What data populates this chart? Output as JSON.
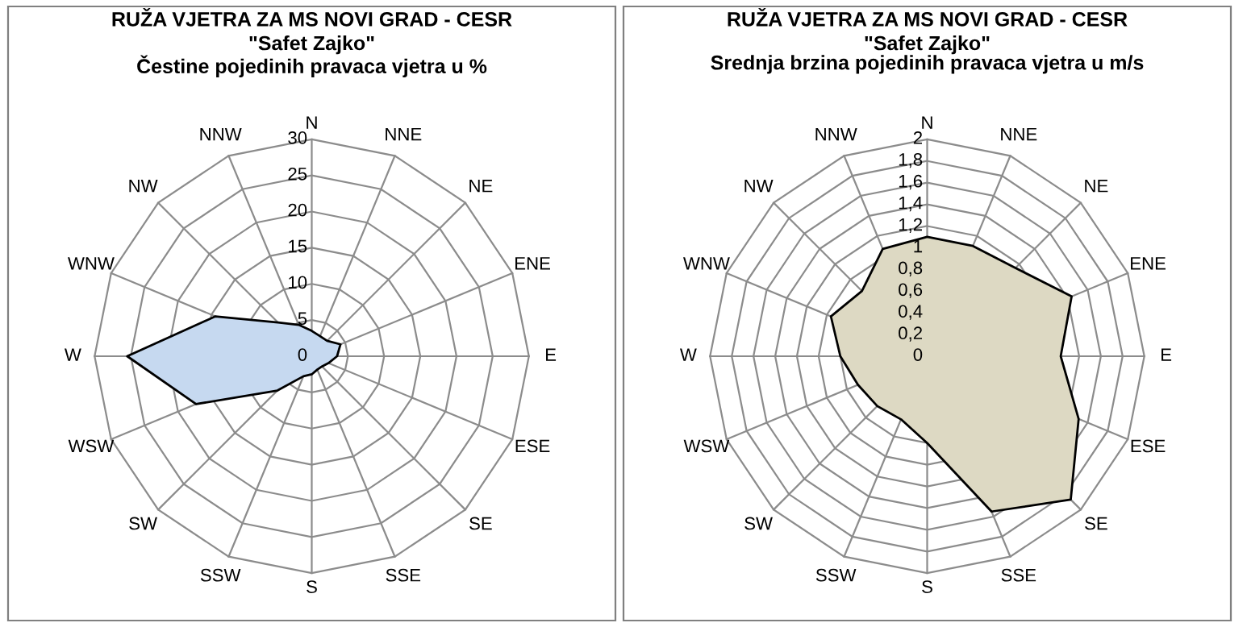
{
  "chart_data": [
    {
      "type": "radar",
      "title": "RUŽA VJETRA ZA MS NOVI GRAD - CESR",
      "subtitle": "\"Safet Zajko\"\nČestine pojedinih pravaca vjetra u %",
      "categories": [
        "N",
        "NNE",
        "NE",
        "ENE",
        "E",
        "ESE",
        "SE",
        "SSE",
        "S",
        "SSW",
        "SW",
        "WSW",
        "W",
        "WNW",
        "NW",
        "NNW"
      ],
      "ylim": [
        0,
        30
      ],
      "yticks": [
        0,
        5,
        10,
        15,
        20,
        25,
        30
      ],
      "grid": true,
      "series": [
        {
          "color": "#c6d9f0",
          "values": [
            3.5,
            3,
            3,
            4.3,
            3.5,
            2.5,
            2,
            2,
            2.5,
            3,
            6.7,
            17.3,
            25.5,
            14.4,
            6.6,
            4.7
          ]
        }
      ]
    },
    {
      "type": "radar",
      "title": "RUŽA VJETRA ZA MS NOVI GRAD - CESR",
      "subtitle": "\"Safet Zajko\"\nSrednja brzina pojedinih pravaca vjetra u m/s",
      "categories": [
        "N",
        "NNE",
        "NE",
        "ENE",
        "E",
        "ESE",
        "SE",
        "SSE",
        "S",
        "SSW",
        "SW",
        "WSW",
        "W",
        "WNW",
        "NW",
        "NNW"
      ],
      "ylim": [
        0,
        2
      ],
      "yticks": [
        0,
        {
          "value": 0.2,
          "label": "0,2"
        },
        {
          "value": 0.4,
          "label": "0,4"
        },
        {
          "value": 0.6,
          "label": "0,6"
        },
        {
          "value": 0.8,
          "label": "0,8"
        },
        1,
        {
          "value": 1.2,
          "label": "1,2"
        },
        {
          "value": 1.4,
          "label": "1,4"
        },
        {
          "value": 1.6,
          "label": "1,6"
        },
        {
          "value": 1.8,
          "label": "1,8"
        },
        2
      ],
      "grid": true,
      "series": [
        {
          "color": "#ddd9c3",
          "values": [
            1.1,
            1.1,
            1.15,
            1.44,
            1.23,
            1.51,
            1.87,
            1.55,
            0.8,
            0.63,
            0.65,
            0.69,
            0.8,
            0.96,
            0.85,
            1.07
          ]
        }
      ]
    }
  ]
}
